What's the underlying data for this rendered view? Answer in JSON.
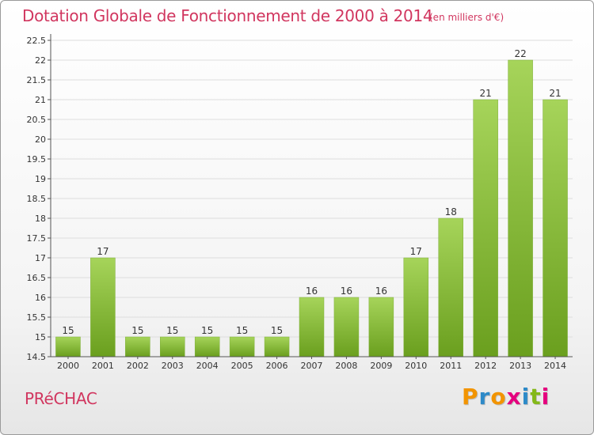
{
  "header": {
    "title": "Dotation Globale de Fonctionnement de 2000 à 2014",
    "unit_note": "(en milliers d'€)"
  },
  "footer": {
    "commune": "PRéCHAC",
    "logo_letters": [
      "P",
      "r",
      "o",
      "x",
      "i",
      "t",
      "i"
    ],
    "logo_colors": [
      "#f29400",
      "#2d8ac8",
      "#f29400",
      "#e5007e",
      "#2d8ac8",
      "#84b819",
      "#e5007e"
    ]
  },
  "colors": {
    "title": "#d1365f",
    "bar_light": "#a6d45a",
    "bar_dark": "#6a9f1e",
    "grid": "#dddddd"
  },
  "chart_data": {
    "type": "bar",
    "title": "Dotation Globale de Fonctionnement de 2000 à 2014",
    "subtitle": "(en milliers d'€)",
    "xlabel": "",
    "ylabel": "",
    "categories": [
      "2000",
      "2001",
      "2002",
      "2003",
      "2004",
      "2005",
      "2006",
      "2007",
      "2008",
      "2009",
      "2010",
      "2011",
      "2012",
      "2013",
      "2014"
    ],
    "values": [
      15,
      17,
      15,
      15,
      15,
      15,
      15,
      16,
      16,
      16,
      17,
      18,
      21,
      22,
      21
    ],
    "ylim": [
      14.5,
      22.5
    ],
    "yticks": [
      "14.5",
      "15",
      "15.5",
      "16",
      "16.5",
      "17",
      "17.5",
      "18",
      "18.5",
      "19",
      "19.5",
      "20",
      "20.5",
      "21",
      "21.5",
      "22",
      "22.5"
    ],
    "grid": true,
    "legend": "none"
  }
}
